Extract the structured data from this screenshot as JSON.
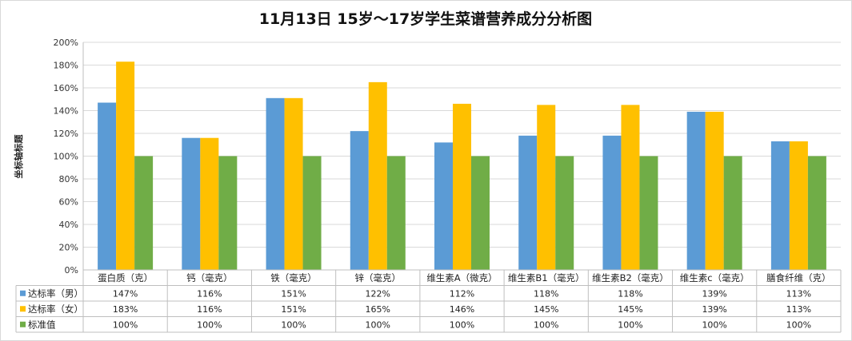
{
  "chart_data": {
    "type": "bar",
    "title": "11月13日  15岁～17岁学生菜谱营养成分分析图",
    "ylabel": "坐标轴标题",
    "ylim": [
      0,
      200
    ],
    "yticks": [
      "0%",
      "20%",
      "40%",
      "60%",
      "80%",
      "100%",
      "120%",
      "140%",
      "160%",
      "180%",
      "200%"
    ],
    "grid": true,
    "legend": "data-table",
    "categories": [
      "蛋白质（克）",
      "钙（毫克）",
      "铁（毫克）",
      "锌（毫克）",
      "维生素A（微克）",
      "维生素B1（毫克）",
      "维生素B2（毫克）",
      "维生素c（毫克）",
      "膳食纤维（克）"
    ],
    "series": [
      {
        "name": "达标率（男）",
        "color": "#5b9bd5",
        "values": [
          147,
          116,
          151,
          122,
          112,
          118,
          118,
          139,
          113
        ],
        "labels": [
          "147%",
          "116%",
          "151%",
          "122%",
          "112%",
          "118%",
          "118%",
          "139%",
          "113%"
        ]
      },
      {
        "name": "达标率（女）",
        "color": "#ffc000",
        "values": [
          183,
          116,
          151,
          165,
          146,
          145,
          145,
          139,
          113
        ],
        "labels": [
          "183%",
          "116%",
          "151%",
          "165%",
          "146%",
          "145%",
          "145%",
          "139%",
          "113%"
        ]
      },
      {
        "name": "标准值",
        "color": "#70ad47",
        "values": [
          100,
          100,
          100,
          100,
          100,
          100,
          100,
          100,
          100
        ],
        "labels": [
          "100%",
          "100%",
          "100%",
          "100%",
          "100%",
          "100%",
          "100%",
          "100%",
          "100%"
        ]
      }
    ]
  }
}
